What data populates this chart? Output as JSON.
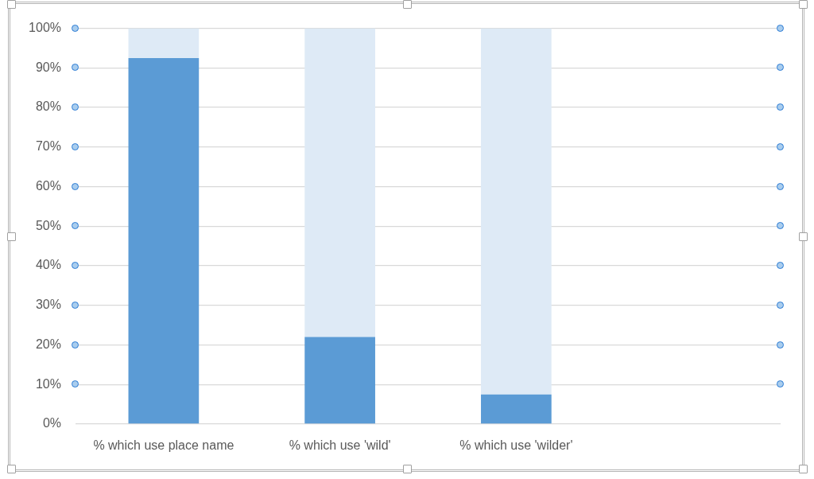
{
  "chart_data": {
    "type": "bar",
    "stacked": true,
    "categories": [
      "% which use place name",
      "% which use 'wild'",
      "% which use 'wilder'",
      null
    ],
    "series": [
      {
        "color": "#5b9bd5",
        "values": [
          92.5,
          22,
          7.5,
          null
        ]
      },
      {
        "color": "#deeaf6",
        "values": [
          7.5,
          78,
          92.5,
          null
        ]
      }
    ],
    "ylim": [
      0,
      100
    ],
    "yticks": [
      {
        "value": 0,
        "label": "0%"
      },
      {
        "value": 10,
        "label": "10%"
      },
      {
        "value": 20,
        "label": "20%"
      },
      {
        "value": 30,
        "label": "30%"
      },
      {
        "value": 40,
        "label": "40%"
      },
      {
        "value": 50,
        "label": "50%"
      },
      {
        "value": 60,
        "label": "60%"
      },
      {
        "value": 70,
        "label": "70%"
      },
      {
        "value": 80,
        "label": "80%"
      },
      {
        "value": 90,
        "label": "90%"
      },
      {
        "value": 100,
        "label": "100%"
      }
    ],
    "grid": "y"
  }
}
